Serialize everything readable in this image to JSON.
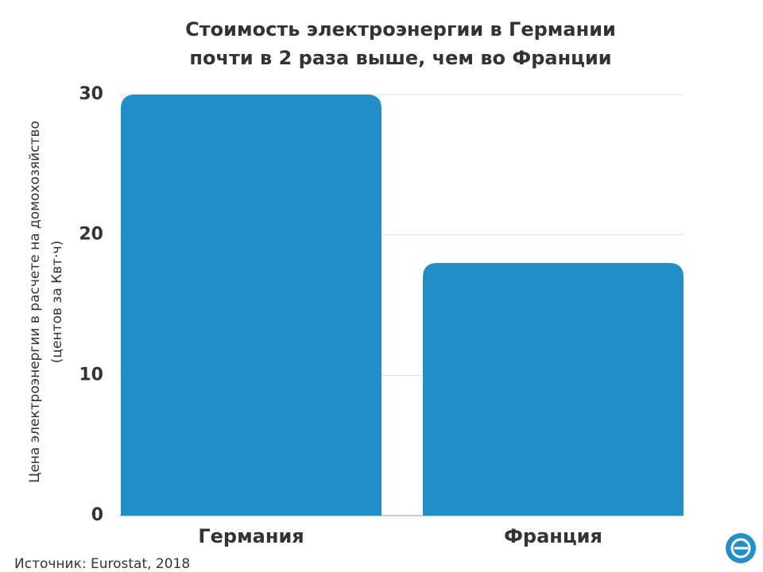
{
  "chart_data": {
    "type": "bar",
    "title": [
      "Стоимость электроэнергии в Германии",
      "почти в 2 раза выше, чем во Франции"
    ],
    "ylabel": [
      "Цена электроэнергии в расчете на домохозяйство",
      "(центов за Квт·ч)"
    ],
    "categories": [
      "Германия",
      "Франция"
    ],
    "values": [
      30,
      18
    ],
    "color": "#238fc8",
    "ylim": [
      0,
      30
    ],
    "yticks": [
      0,
      10,
      20,
      30
    ],
    "grid": true,
    "source": "Источник: Eurostat, 2018"
  }
}
